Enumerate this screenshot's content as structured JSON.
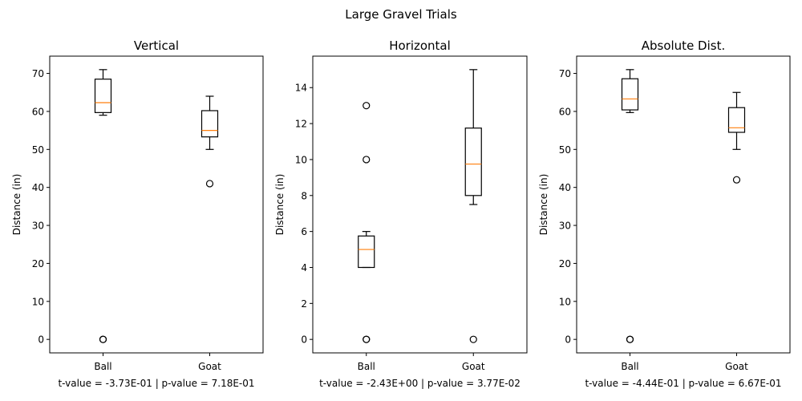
{
  "figure_title": "Large Gravel Trials",
  "chart_data": [
    {
      "type": "box",
      "title": "Vertical",
      "xlabel": "t-value = -3.73E-01 | p-value = 7.18E-01",
      "ylabel": "Distance (in)",
      "categories": [
        "Ball",
        "Goat"
      ],
      "ylim": [
        -3.55,
        74.55
      ],
      "yticks": [
        0,
        10,
        20,
        30,
        40,
        50,
        60,
        70
      ],
      "boxes": [
        {
          "whislo": 59,
          "q1": 59.7,
          "med": 62.3,
          "q3": 68.5,
          "whishi": 71,
          "fliers": [
            0,
            0
          ]
        },
        {
          "whislo": 50,
          "q1": 53.3,
          "med": 55,
          "q3": 60.2,
          "whishi": 64,
          "fliers": [
            41
          ]
        }
      ]
    },
    {
      "type": "box",
      "title": "Horizontal",
      "xlabel": "t-value = -2.43E+00 | p-value = 3.77E-02",
      "ylabel": "Distance (in)",
      "categories": [
        "Ball",
        "Goat"
      ],
      "ylim": [
        -0.75,
        15.75
      ],
      "yticks": [
        0,
        2,
        4,
        6,
        8,
        10,
        12,
        14
      ],
      "boxes": [
        {
          "whislo": 4,
          "q1": 4,
          "med": 5,
          "q3": 5.75,
          "whishi": 6,
          "fliers": [
            0,
            0,
            10,
            13
          ]
        },
        {
          "whislo": 7.5,
          "q1": 8,
          "med": 9.75,
          "q3": 11.75,
          "whishi": 15,
          "fliers": [
            0
          ]
        }
      ]
    },
    {
      "type": "box",
      "title": "Absolute Dist.",
      "xlabel": "t-value = -4.44E-01 | p-value = 6.67E-01",
      "ylabel": "Distance (in)",
      "categories": [
        "Ball",
        "Goat"
      ],
      "ylim": [
        -3.55,
        74.55
      ],
      "yticks": [
        0,
        10,
        20,
        30,
        40,
        50,
        60,
        70
      ],
      "boxes": [
        {
          "whislo": 59.7,
          "q1": 60.4,
          "med": 63.3,
          "q3": 68.6,
          "whishi": 71,
          "fliers": [
            0,
            0
          ]
        },
        {
          "whislo": 50,
          "q1": 54.5,
          "med": 55.7,
          "q3": 61,
          "whishi": 65,
          "fliers": [
            42
          ]
        }
      ]
    }
  ]
}
